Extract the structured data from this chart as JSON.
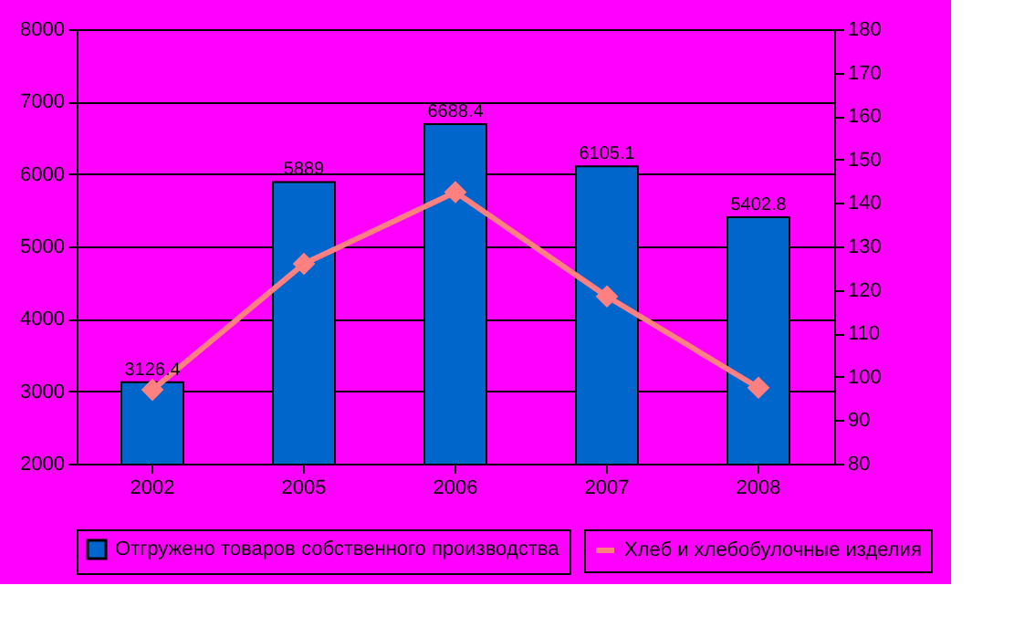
{
  "chart_data": {
    "type": "bar",
    "categories": [
      "2002",
      "2005",
      "2006",
      "2007",
      "2008"
    ],
    "series": [
      {
        "name": "Отгружено товаров собственного производства",
        "color": "#0066cc",
        "values": [
          3126.4,
          5889,
          6688.4,
          6105.1,
          5402.8
        ],
        "data_labels": true
      },
      {
        "name": "Хлеб и хлебобулочные изделия",
        "type": "line",
        "axis": "y2",
        "color": "#ff8080",
        "marker": "diamond",
        "values": [
          97,
          126,
          142.5,
          118.5,
          97.5
        ]
      }
    ],
    "ylim": [
      2000,
      8000
    ],
    "yticks": [
      2000,
      3000,
      4000,
      5000,
      6000,
      7000,
      8000
    ],
    "y2lim": [
      80,
      180
    ],
    "y2ticks": [
      80,
      90,
      100,
      110,
      120,
      130,
      140,
      150,
      160,
      170,
      180
    ],
    "grid": "y",
    "legend": "bottom"
  }
}
